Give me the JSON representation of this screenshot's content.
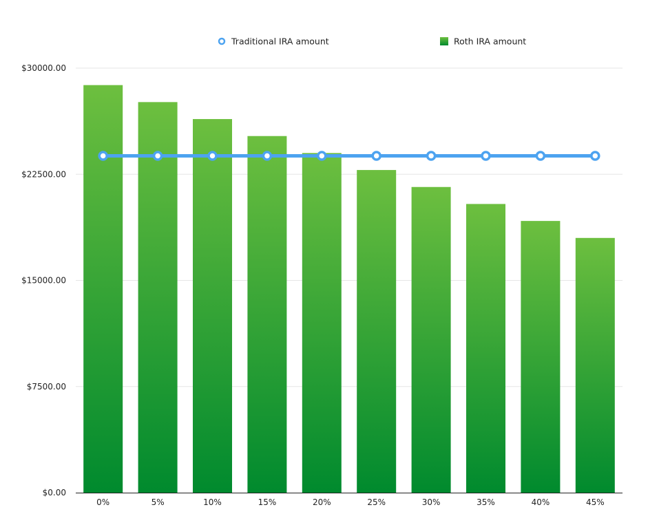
{
  "chart_data": {
    "type": "bar",
    "categories": [
      "0%",
      "5%",
      "10%",
      "15%",
      "20%",
      "25%",
      "30%",
      "35%",
      "40%",
      "45%"
    ],
    "series": [
      {
        "name": "Roth IRA amount",
        "kind": "bar",
        "color_top": "#6dbf3f",
        "color_bottom": "#008a2e",
        "values": [
          28800,
          27600,
          26400,
          25200,
          24000,
          22800,
          21600,
          20400,
          19200,
          18000
        ]
      },
      {
        "name": "Traditional IRA amount",
        "kind": "line",
        "color": "#4da3f0",
        "values": [
          23800,
          23800,
          23800,
          23800,
          23800,
          23800,
          23800,
          23800,
          23800,
          23800
        ]
      }
    ],
    "yticks": [
      "$0.00",
      "$7500.00",
      "$15000.00",
      "$22500.00",
      "$30000.00"
    ],
    "ytick_values": [
      0,
      7500,
      15000,
      22500,
      30000
    ],
    "ylim": [
      0,
      30000
    ],
    "grid": true,
    "legend_position": "top",
    "title": "",
    "xlabel": "",
    "ylabel": ""
  }
}
